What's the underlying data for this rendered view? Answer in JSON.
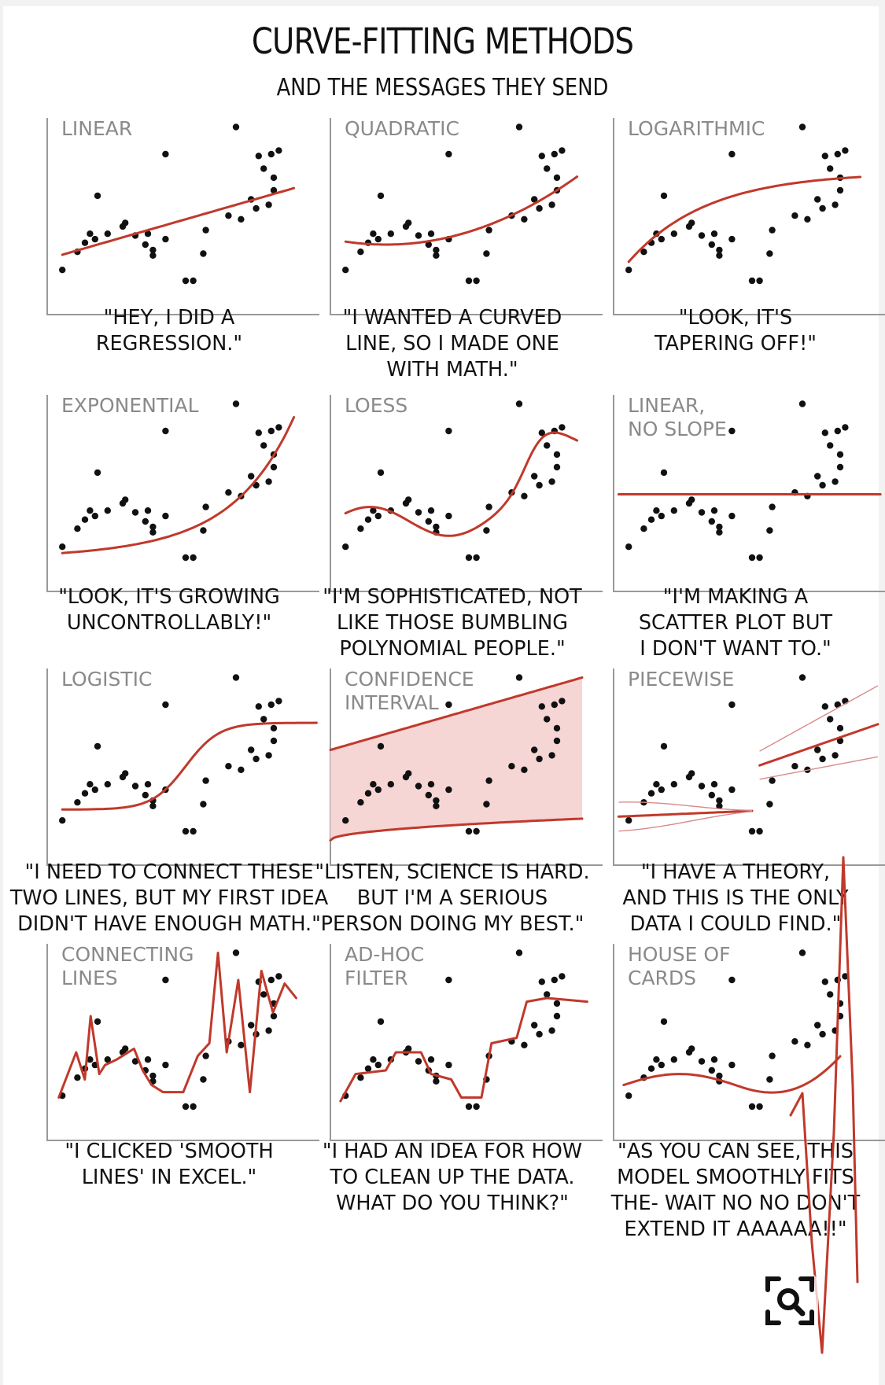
{
  "title": "CURVE-FITTING METHODS",
  "subtitle": "AND THE MESSAGES THEY SEND",
  "icons": {
    "zoom": "magnify-icon"
  },
  "colors": {
    "fit": "#c0392b",
    "band": "#f6d5d5",
    "points": "#111111"
  },
  "chart_data": [
    {
      "type": "scatter",
      "fit": "linear",
      "title": [
        "LINEAR"
      ],
      "caption": [
        "\"HEY, I DID A",
        "REGRESSION.\""
      ]
    },
    {
      "type": "scatter",
      "fit": "quadratic",
      "title": [
        "QUADRATIC"
      ],
      "caption": [
        "\"I WANTED A CURVED",
        "LINE, SO I MADE ONE",
        "WITH MATH.\""
      ]
    },
    {
      "type": "scatter",
      "fit": "logarithmic",
      "title": [
        "LOGARITHMIC"
      ],
      "caption": [
        "\"LOOK, IT'S",
        "TAPERING OFF!\""
      ]
    },
    {
      "type": "scatter",
      "fit": "exponential",
      "title": [
        "EXPONENTIAL"
      ],
      "caption": [
        "\"LOOK, IT'S GROWING",
        "UNCONTROLLABLY!\""
      ]
    },
    {
      "type": "scatter",
      "fit": "loess",
      "title": [
        "LOESS"
      ],
      "caption": [
        "\"I'M SOPHISTICATED, NOT",
        "LIKE THOSE BUMBLING",
        "POLYNOMIAL PEOPLE.\""
      ]
    },
    {
      "type": "scatter",
      "fit": "flat",
      "title": [
        "LINEAR,",
        "NO SLOPE"
      ],
      "caption": [
        "\"I'M MAKING A",
        "SCATTER PLOT BUT",
        "I DON'T WANT TO.\""
      ]
    },
    {
      "type": "scatter",
      "fit": "logistic",
      "title": [
        "LOGISTIC"
      ],
      "caption": [
        "\"I NEED TO CONNECT THESE",
        "TWO LINES, BUT MY FIRST IDEA",
        "DIDN'T HAVE ENOUGH MATH.\""
      ]
    },
    {
      "type": "scatter",
      "fit": "confidence",
      "title": [
        "CONFIDENCE",
        "INTERVAL"
      ],
      "caption": [
        "\"LISTEN, SCIENCE IS HARD.",
        "BUT I'M A SERIOUS",
        "PERSON DOING MY BEST.\""
      ]
    },
    {
      "type": "scatter",
      "fit": "piecewise",
      "title": [
        "PIECEWISE"
      ],
      "caption": [
        "\"I HAVE A THEORY,",
        "AND THIS IS THE ONLY",
        "DATA I COULD FIND.\""
      ]
    },
    {
      "type": "scatter",
      "fit": "connecting",
      "title": [
        "CONNECTING",
        "LINES"
      ],
      "caption": [
        "\"I CLICKED 'SMOOTH",
        "LINES' IN EXCEL.\""
      ]
    },
    {
      "type": "scatter",
      "fit": "adhoc",
      "title": [
        "AD-HOC",
        "FILTER"
      ],
      "caption": [
        "\"I HAD AN IDEA FOR HOW",
        "TO CLEAN UP THE DATA.",
        "WHAT DO YOU THINK?\""
      ]
    },
    {
      "type": "scatter",
      "fit": "house",
      "title": [
        "HOUSE OF",
        "CARDS"
      ],
      "caption": [
        "\"AS YOU CAN SEE, THIS",
        "MODEL SMOOTHLY FITS",
        "THE- WAIT NO NO DON'T",
        "EXTEND IT AAAAAA!!\""
      ]
    }
  ],
  "points": [
    [
      0.06,
      0.16
    ],
    [
      0.12,
      0.26
    ],
    [
      0.15,
      0.31
    ],
    [
      0.19,
      0.33
    ],
    [
      0.24,
      0.36
    ],
    [
      0.31,
      0.42
    ],
    [
      0.35,
      0.35
    ],
    [
      0.39,
      0.3
    ],
    [
      0.42,
      0.27
    ],
    [
      0.55,
      0.1
    ],
    [
      0.62,
      0.25
    ],
    [
      0.81,
      0.55
    ],
    [
      0.47,
      0.33
    ],
    [
      0.58,
      0.1
    ],
    [
      0.86,
      0.72
    ],
    [
      0.89,
      0.8
    ],
    [
      0.92,
      0.82
    ],
    [
      0.9,
      0.67
    ],
    [
      0.3,
      0.4
    ],
    [
      0.42,
      0.24
    ],
    [
      0.17,
      0.36
    ],
    [
      0.72,
      0.46
    ],
    [
      0.83,
      0.5
    ],
    [
      0.88,
      0.52
    ],
    [
      0.4,
      0.36
    ],
    [
      0.63,
      0.38
    ],
    [
      0.77,
      0.44
    ],
    [
      0.47,
      0.8
    ],
    [
      0.2,
      0.57
    ],
    [
      0.75,
      0.95
    ],
    [
      0.84,
      0.79
    ],
    [
      0.9,
      0.6
    ]
  ]
}
